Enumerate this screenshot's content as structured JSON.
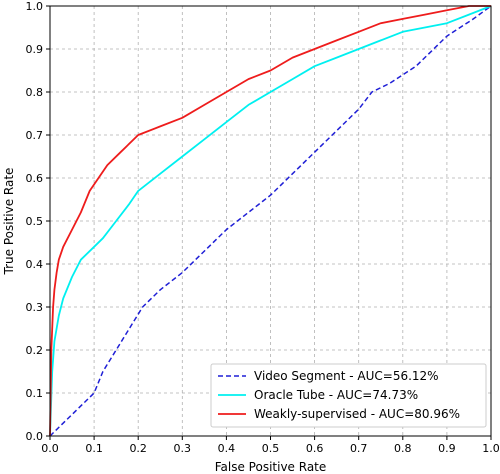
{
  "chart_data": {
    "type": "line",
    "title": "",
    "xlabel": "False Positive Rate",
    "ylabel": "True Positive Rate",
    "xlim": [
      0.0,
      1.0
    ],
    "ylim": [
      0.0,
      1.0
    ],
    "xticks": [
      "0.0",
      "0.1",
      "0.2",
      "0.3",
      "0.4",
      "0.5",
      "0.6",
      "0.7",
      "0.8",
      "0.9",
      "1.0"
    ],
    "yticks": [
      "0.0",
      "0.1",
      "0.2",
      "0.3",
      "0.4",
      "0.5",
      "0.6",
      "0.7",
      "0.8",
      "0.9",
      "1.0"
    ],
    "grid": true,
    "legend_position": "lower-right",
    "series": [
      {
        "name": "Video Segment - AUC=56.12%",
        "color": "#1f1fd6",
        "style": "dashed",
        "points": [
          [
            0.0,
            0.0
          ],
          [
            0.02,
            0.02
          ],
          [
            0.05,
            0.05
          ],
          [
            0.08,
            0.08
          ],
          [
            0.1,
            0.1
          ],
          [
            0.12,
            0.15
          ],
          [
            0.15,
            0.2
          ],
          [
            0.18,
            0.25
          ],
          [
            0.21,
            0.3
          ],
          [
            0.25,
            0.34
          ],
          [
            0.3,
            0.38
          ],
          [
            0.35,
            0.43
          ],
          [
            0.4,
            0.48
          ],
          [
            0.45,
            0.52
          ],
          [
            0.5,
            0.56
          ],
          [
            0.55,
            0.61
          ],
          [
            0.6,
            0.66
          ],
          [
            0.65,
            0.71
          ],
          [
            0.7,
            0.76
          ],
          [
            0.73,
            0.8
          ],
          [
            0.77,
            0.82
          ],
          [
            0.8,
            0.84
          ],
          [
            0.83,
            0.86
          ],
          [
            0.87,
            0.9
          ],
          [
            0.9,
            0.93
          ],
          [
            0.93,
            0.95
          ],
          [
            0.96,
            0.97
          ],
          [
            1.0,
            1.0
          ]
        ]
      },
      {
        "name": "Oracle Tube - AUC=74.73%",
        "color": "#00f0f0",
        "style": "solid",
        "points": [
          [
            0.0,
            0.0
          ],
          [
            0.005,
            0.15
          ],
          [
            0.01,
            0.22
          ],
          [
            0.02,
            0.28
          ],
          [
            0.03,
            0.32
          ],
          [
            0.05,
            0.37
          ],
          [
            0.07,
            0.41
          ],
          [
            0.1,
            0.44
          ],
          [
            0.12,
            0.46
          ],
          [
            0.15,
            0.5
          ],
          [
            0.18,
            0.54
          ],
          [
            0.2,
            0.57
          ],
          [
            0.25,
            0.61
          ],
          [
            0.3,
            0.65
          ],
          [
            0.35,
            0.69
          ],
          [
            0.4,
            0.73
          ],
          [
            0.45,
            0.77
          ],
          [
            0.5,
            0.8
          ],
          [
            0.55,
            0.83
          ],
          [
            0.6,
            0.86
          ],
          [
            0.65,
            0.88
          ],
          [
            0.7,
            0.9
          ],
          [
            0.75,
            0.92
          ],
          [
            0.8,
            0.94
          ],
          [
            0.85,
            0.95
          ],
          [
            0.9,
            0.96
          ],
          [
            0.95,
            0.98
          ],
          [
            1.0,
            1.0
          ]
        ]
      },
      {
        "name": "Weakly-supervised - AUC=80.96%",
        "color": "#ee1c1c",
        "style": "solid",
        "points": [
          [
            0.0,
            0.0
          ],
          [
            0.003,
            0.2
          ],
          [
            0.007,
            0.3
          ],
          [
            0.01,
            0.34
          ],
          [
            0.015,
            0.38
          ],
          [
            0.02,
            0.41
          ],
          [
            0.03,
            0.44
          ],
          [
            0.05,
            0.48
          ],
          [
            0.07,
            0.52
          ],
          [
            0.09,
            0.57
          ],
          [
            0.11,
            0.6
          ],
          [
            0.13,
            0.63
          ],
          [
            0.16,
            0.66
          ],
          [
            0.2,
            0.7
          ],
          [
            0.25,
            0.72
          ],
          [
            0.3,
            0.74
          ],
          [
            0.35,
            0.77
          ],
          [
            0.4,
            0.8
          ],
          [
            0.45,
            0.83
          ],
          [
            0.5,
            0.85
          ],
          [
            0.55,
            0.88
          ],
          [
            0.6,
            0.9
          ],
          [
            0.65,
            0.92
          ],
          [
            0.7,
            0.94
          ],
          [
            0.75,
            0.96
          ],
          [
            0.8,
            0.97
          ],
          [
            0.85,
            0.98
          ],
          [
            0.9,
            0.99
          ],
          [
            0.95,
            1.0
          ],
          [
            1.0,
            1.0
          ]
        ]
      }
    ]
  }
}
